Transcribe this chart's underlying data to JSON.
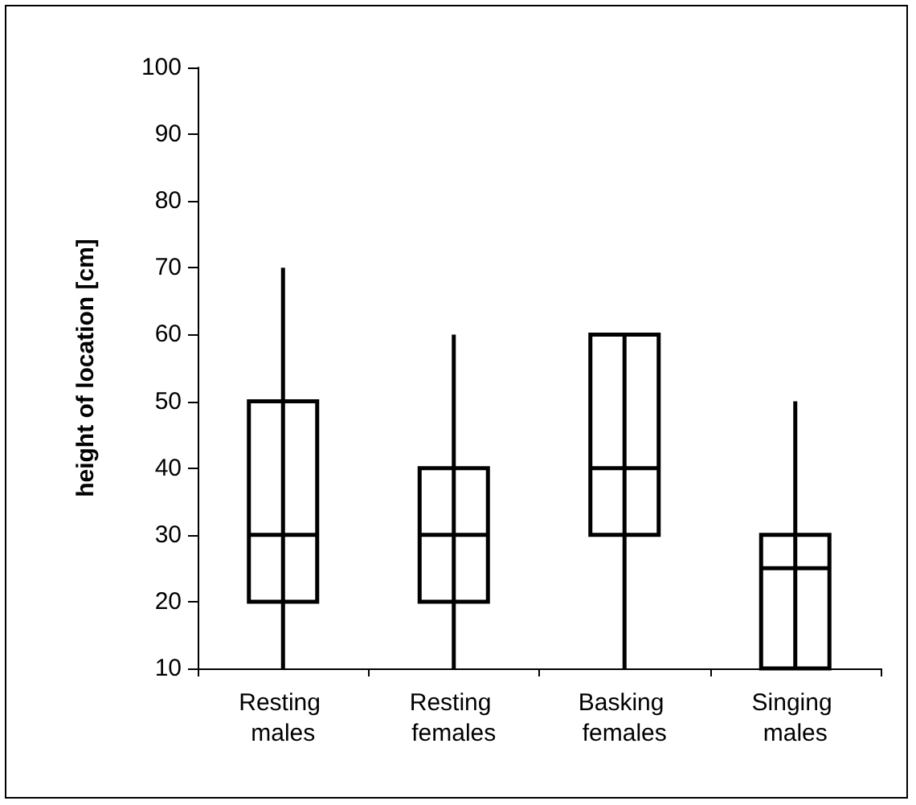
{
  "chart_data": {
    "type": "box",
    "ylabel": "height of location [cm]",
    "categories": [
      "Resting males",
      "Resting females",
      "Basking females",
      "Singing males"
    ],
    "boxes": [
      {
        "low": 10,
        "q1": 20,
        "median": 30,
        "q3": 50,
        "high": 70
      },
      {
        "low": 10,
        "q1": 20,
        "median": 30,
        "q3": 40,
        "high": 60
      },
      {
        "low": 10,
        "q1": 30,
        "median": 40,
        "q3": 60,
        "high": 60
      },
      {
        "low": 10,
        "q1": 10,
        "median": 25,
        "q3": 30,
        "high": 50
      }
    ],
    "color": "#000000",
    "ylim": [
      10,
      100
    ],
    "yticks": [
      10,
      20,
      30,
      40,
      50,
      60,
      70,
      80,
      90,
      100
    ],
    "grid": false
  }
}
